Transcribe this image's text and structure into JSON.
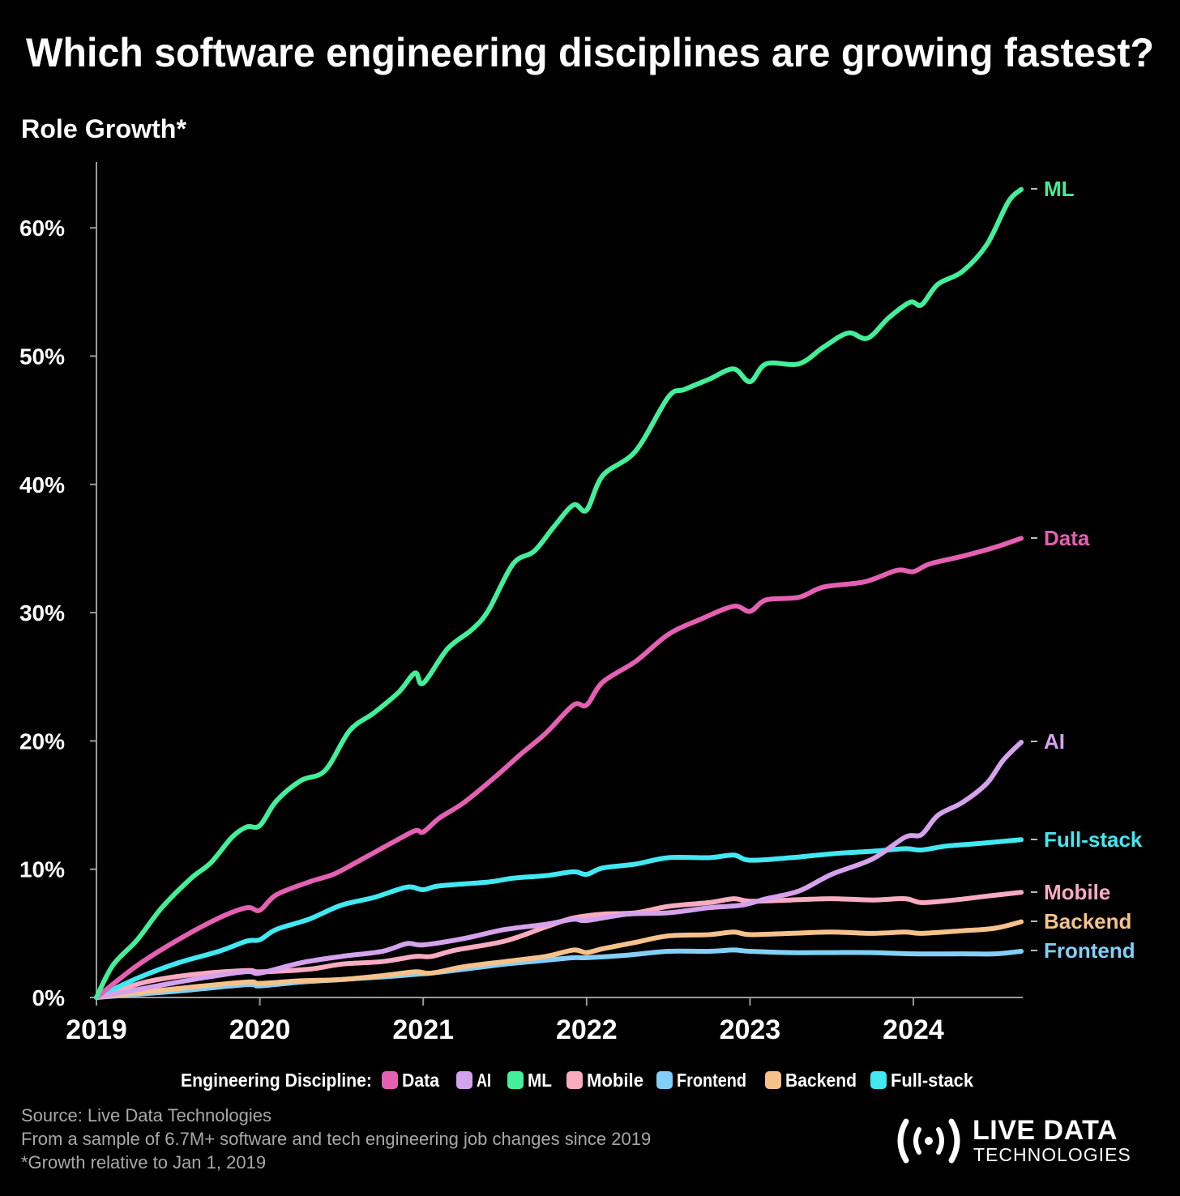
{
  "chart_data": {
    "type": "line",
    "title": "Which software engineering disciplines are growing fastest?",
    "ylabel": "Role Growth*",
    "xlabel": "",
    "xlim": [
      2019,
      2024.66
    ],
    "ylim": [
      0,
      65
    ],
    "x_ticks": [
      "2019",
      "2020",
      "2021",
      "2022",
      "2023",
      "2024"
    ],
    "y_ticks": [
      "0%",
      "10%",
      "20%",
      "30%",
      "40%",
      "50%",
      "60%"
    ],
    "grid": false,
    "legend": {
      "title": "Engineering Discipline:",
      "placement": "bottom"
    },
    "series": [
      {
        "name": "Data",
        "color": "#e460b2",
        "points": [
          [
            2019,
            0
          ],
          [
            2019.25,
            2.5
          ],
          [
            2019.5,
            4.5
          ],
          [
            2019.75,
            6.2
          ],
          [
            2019.92,
            7
          ],
          [
            2020,
            6.8
          ],
          [
            2020.1,
            8
          ],
          [
            2020.3,
            9
          ],
          [
            2020.45,
            9.6
          ],
          [
            2020.6,
            10.6
          ],
          [
            2020.8,
            12
          ],
          [
            2020.95,
            13
          ],
          [
            2021,
            12.9
          ],
          [
            2021.1,
            14
          ],
          [
            2021.25,
            15.2
          ],
          [
            2021.45,
            17.3
          ],
          [
            2021.6,
            19
          ],
          [
            2021.75,
            20.6
          ],
          [
            2021.92,
            22.8
          ],
          [
            2022,
            22.8
          ],
          [
            2022.1,
            24.6
          ],
          [
            2022.3,
            26.2
          ],
          [
            2022.5,
            28.3
          ],
          [
            2022.7,
            29.5
          ],
          [
            2022.9,
            30.5
          ],
          [
            2023,
            30.1
          ],
          [
            2023.1,
            31
          ],
          [
            2023.3,
            31.2
          ],
          [
            2023.45,
            32
          ],
          [
            2023.7,
            32.4
          ],
          [
            2023.9,
            33.3
          ],
          [
            2024,
            33.2
          ],
          [
            2024.1,
            33.8
          ],
          [
            2024.3,
            34.4
          ],
          [
            2024.5,
            35.1
          ],
          [
            2024.66,
            35.8
          ]
        ]
      },
      {
        "name": "AI",
        "color": "#d5a2ee",
        "points": [
          [
            2019,
            0
          ],
          [
            2019.5,
            1.2
          ],
          [
            2019.9,
            2
          ],
          [
            2020,
            1.9
          ],
          [
            2020.25,
            2.7
          ],
          [
            2020.5,
            3.2
          ],
          [
            2020.75,
            3.6
          ],
          [
            2020.9,
            4.2
          ],
          [
            2021,
            4.1
          ],
          [
            2021.25,
            4.6
          ],
          [
            2021.5,
            5.3
          ],
          [
            2021.75,
            5.7
          ],
          [
            2021.92,
            6.1
          ],
          [
            2022,
            6
          ],
          [
            2022.25,
            6.5
          ],
          [
            2022.5,
            6.6
          ],
          [
            2022.75,
            7
          ],
          [
            2022.95,
            7.2
          ],
          [
            2023.1,
            7.7
          ],
          [
            2023.3,
            8.3
          ],
          [
            2023.5,
            9.6
          ],
          [
            2023.75,
            10.8
          ],
          [
            2023.95,
            12.5
          ],
          [
            2024.05,
            12.7
          ],
          [
            2024.15,
            14.2
          ],
          [
            2024.3,
            15.2
          ],
          [
            2024.45,
            16.7
          ],
          [
            2024.55,
            18.5
          ],
          [
            2024.66,
            19.9
          ]
        ]
      },
      {
        "name": "ML",
        "color": "#43ef98",
        "points": [
          [
            2019,
            0
          ],
          [
            2019.1,
            2.5
          ],
          [
            2019.25,
            4.5
          ],
          [
            2019.4,
            7
          ],
          [
            2019.58,
            9.3
          ],
          [
            2019.7,
            10.5
          ],
          [
            2019.83,
            12.5
          ],
          [
            2019.92,
            13.3
          ],
          [
            2020,
            13.4
          ],
          [
            2020.1,
            15.3
          ],
          [
            2020.25,
            16.9
          ],
          [
            2020.4,
            17.7
          ],
          [
            2020.55,
            20.8
          ],
          [
            2020.7,
            22.2
          ],
          [
            2020.85,
            23.8
          ],
          [
            2020.95,
            25.3
          ],
          [
            2021,
            24.5
          ],
          [
            2021.15,
            27.2
          ],
          [
            2021.3,
            28.7
          ],
          [
            2021.4,
            30.2
          ],
          [
            2021.55,
            33.8
          ],
          [
            2021.68,
            34.8
          ],
          [
            2021.8,
            36.7
          ],
          [
            2021.92,
            38.4
          ],
          [
            2022,
            38
          ],
          [
            2022.1,
            40.7
          ],
          [
            2022.3,
            42.6
          ],
          [
            2022.5,
            46.8
          ],
          [
            2022.6,
            47.4
          ],
          [
            2022.75,
            48.2
          ],
          [
            2022.9,
            49
          ],
          [
            2023,
            48
          ],
          [
            2023.1,
            49.4
          ],
          [
            2023.3,
            49.4
          ],
          [
            2023.45,
            50.7
          ],
          [
            2023.6,
            51.8
          ],
          [
            2023.72,
            51.4
          ],
          [
            2023.85,
            53
          ],
          [
            2023.98,
            54.2
          ],
          [
            2024.05,
            54
          ],
          [
            2024.15,
            55.6
          ],
          [
            2024.3,
            56.6
          ],
          [
            2024.45,
            58.7
          ],
          [
            2024.58,
            62
          ],
          [
            2024.66,
            63
          ]
        ]
      },
      {
        "name": "Mobile",
        "color": "#f9abc2",
        "points": [
          [
            2019,
            0
          ],
          [
            2019.3,
            1.2
          ],
          [
            2019.6,
            1.8
          ],
          [
            2019.92,
            2.1
          ],
          [
            2020,
            2
          ],
          [
            2020.3,
            2.2
          ],
          [
            2020.5,
            2.6
          ],
          [
            2020.75,
            2.8
          ],
          [
            2020.95,
            3.2
          ],
          [
            2021.05,
            3.2
          ],
          [
            2021.2,
            3.7
          ],
          [
            2021.5,
            4.4
          ],
          [
            2021.75,
            5.5
          ],
          [
            2021.92,
            6.2
          ],
          [
            2022.1,
            6.5
          ],
          [
            2022.3,
            6.6
          ],
          [
            2022.5,
            7.1
          ],
          [
            2022.75,
            7.4
          ],
          [
            2022.9,
            7.7
          ],
          [
            2023,
            7.5
          ],
          [
            2023.25,
            7.6
          ],
          [
            2023.5,
            7.7
          ],
          [
            2023.75,
            7.6
          ],
          [
            2023.95,
            7.7
          ],
          [
            2024.05,
            7.4
          ],
          [
            2024.25,
            7.6
          ],
          [
            2024.45,
            7.9
          ],
          [
            2024.66,
            8.2
          ]
        ]
      },
      {
        "name": "Frontend",
        "color": "#82cff7",
        "points": [
          [
            2019,
            0
          ],
          [
            2019.5,
            0.5
          ],
          [
            2019.92,
            1
          ],
          [
            2020,
            0.9
          ],
          [
            2020.25,
            1.2
          ],
          [
            2020.5,
            1.4
          ],
          [
            2020.75,
            1.6
          ],
          [
            2020.95,
            1.8
          ],
          [
            2021.05,
            1.9
          ],
          [
            2021.25,
            2.2
          ],
          [
            2021.5,
            2.6
          ],
          [
            2021.75,
            2.9
          ],
          [
            2021.92,
            3.1
          ],
          [
            2022,
            3.1
          ],
          [
            2022.25,
            3.3
          ],
          [
            2022.5,
            3.6
          ],
          [
            2022.75,
            3.6
          ],
          [
            2022.9,
            3.7
          ],
          [
            2023,
            3.6
          ],
          [
            2023.25,
            3.5
          ],
          [
            2023.5,
            3.5
          ],
          [
            2023.75,
            3.5
          ],
          [
            2024,
            3.4
          ],
          [
            2024.3,
            3.4
          ],
          [
            2024.5,
            3.4
          ],
          [
            2024.66,
            3.6
          ]
        ]
      },
      {
        "name": "Backend",
        "color": "#f6c28c",
        "points": [
          [
            2019,
            0
          ],
          [
            2019.5,
            0.7
          ],
          [
            2019.92,
            1.2
          ],
          [
            2020,
            1.1
          ],
          [
            2020.25,
            1.3
          ],
          [
            2020.5,
            1.4
          ],
          [
            2020.75,
            1.7
          ],
          [
            2020.95,
            2
          ],
          [
            2021.05,
            1.9
          ],
          [
            2021.25,
            2.4
          ],
          [
            2021.5,
            2.8
          ],
          [
            2021.75,
            3.2
          ],
          [
            2021.92,
            3.7
          ],
          [
            2022,
            3.5
          ],
          [
            2022.1,
            3.8
          ],
          [
            2022.3,
            4.3
          ],
          [
            2022.5,
            4.8
          ],
          [
            2022.75,
            4.9
          ],
          [
            2022.9,
            5.1
          ],
          [
            2023,
            4.9
          ],
          [
            2023.25,
            5
          ],
          [
            2023.5,
            5.1
          ],
          [
            2023.75,
            5
          ],
          [
            2023.95,
            5.1
          ],
          [
            2024.05,
            5
          ],
          [
            2024.3,
            5.2
          ],
          [
            2024.5,
            5.4
          ],
          [
            2024.66,
            5.9
          ]
        ]
      },
      {
        "name": "Full-stack",
        "color": "#42e8f2",
        "points": [
          [
            2019,
            0
          ],
          [
            2019.25,
            1.5
          ],
          [
            2019.5,
            2.7
          ],
          [
            2019.75,
            3.6
          ],
          [
            2019.92,
            4.4
          ],
          [
            2020,
            4.5
          ],
          [
            2020.1,
            5.3
          ],
          [
            2020.3,
            6.1
          ],
          [
            2020.5,
            7.2
          ],
          [
            2020.7,
            7.8
          ],
          [
            2020.9,
            8.6
          ],
          [
            2021,
            8.4
          ],
          [
            2021.1,
            8.7
          ],
          [
            2021.4,
            9
          ],
          [
            2021.55,
            9.3
          ],
          [
            2021.75,
            9.5
          ],
          [
            2021.92,
            9.8
          ],
          [
            2022,
            9.6
          ],
          [
            2022.1,
            10.1
          ],
          [
            2022.3,
            10.4
          ],
          [
            2022.5,
            10.9
          ],
          [
            2022.75,
            10.9
          ],
          [
            2022.9,
            11.1
          ],
          [
            2023,
            10.7
          ],
          [
            2023.25,
            10.9
          ],
          [
            2023.5,
            11.2
          ],
          [
            2023.75,
            11.4
          ],
          [
            2023.95,
            11.6
          ],
          [
            2024.05,
            11.5
          ],
          [
            2024.2,
            11.8
          ],
          [
            2024.4,
            12
          ],
          [
            2024.66,
            12.3
          ]
        ]
      }
    ]
  },
  "footer": {
    "source": "Source: Live Data Technologies",
    "sample": "From a sample of 6.7M+ software and tech engineering job changes since 2019",
    "note": "*Growth relative to Jan 1, 2019"
  },
  "logo": {
    "line1": "LIVE DATA",
    "line2": "TECHNOLOGIES"
  }
}
